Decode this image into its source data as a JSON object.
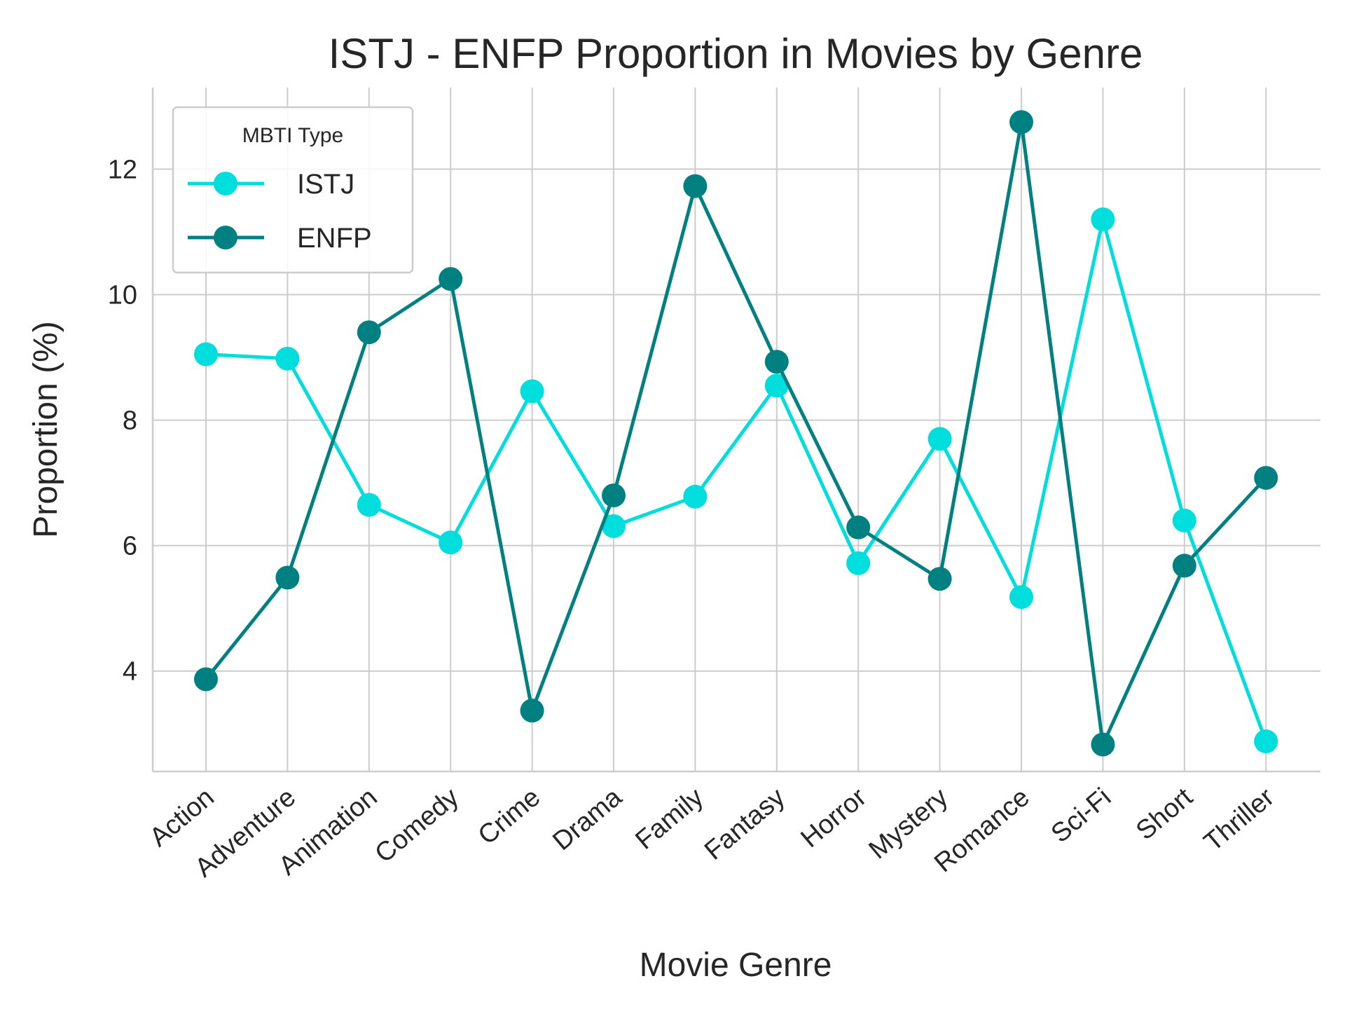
{
  "chart_data": {
    "type": "line",
    "title": "ISTJ - ENFP Proportion in Movies by Genre",
    "xlabel": "Movie Genre",
    "ylabel": "Proportion (%)",
    "categories": [
      "Action",
      "Adventure",
      "Animation",
      "Comedy",
      "Crime",
      "Drama",
      "Family",
      "Fantasy",
      "Horror",
      "Mystery",
      "Romance",
      "Sci-Fi",
      "Short",
      "Thriller"
    ],
    "ylim": [
      2.4,
      13.3
    ],
    "yticks": [
      4,
      6,
      8,
      10,
      12
    ],
    "grid": true,
    "legend": {
      "title": "MBTI Type",
      "placement": "top-left"
    },
    "series": [
      {
        "name": "ISTJ",
        "color": "#00dddd",
        "values": [
          9.05,
          8.98,
          6.65,
          6.05,
          8.46,
          6.31,
          6.78,
          8.55,
          5.72,
          7.7,
          5.18,
          11.2,
          6.4,
          2.88
        ]
      },
      {
        "name": "ENFP",
        "color": "#008080",
        "values": [
          3.87,
          5.49,
          9.4,
          10.25,
          3.37,
          6.8,
          11.73,
          8.93,
          6.29,
          5.47,
          12.75,
          2.83,
          5.68,
          7.08
        ]
      }
    ]
  }
}
